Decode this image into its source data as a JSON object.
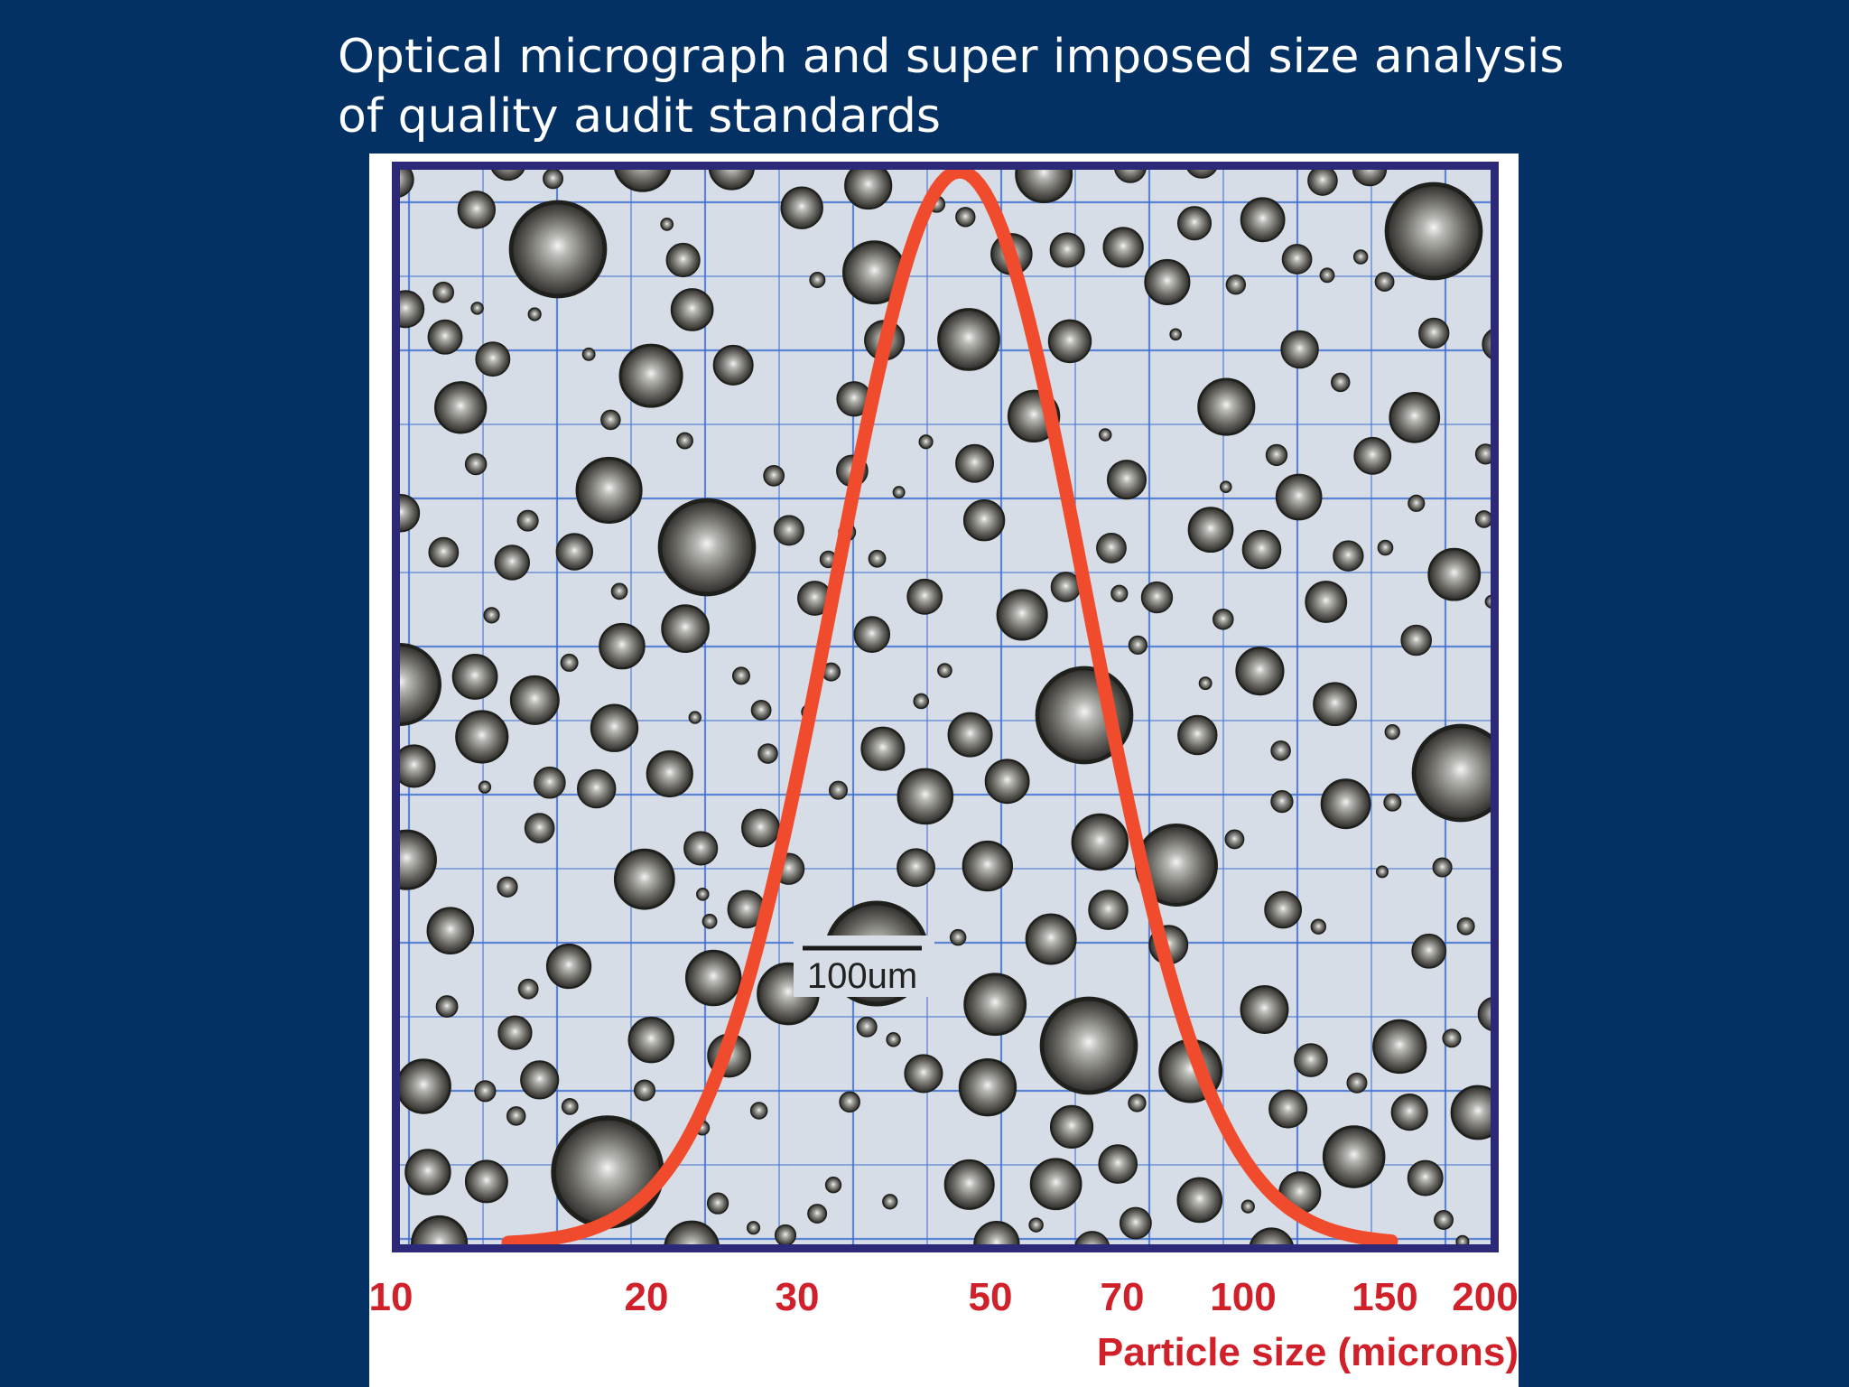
{
  "title": {
    "line1": "Optical micrograph and super imposed size analysis",
    "line2": "of quality audit standards"
  },
  "micrograph": {
    "scale_bar_label": "100um"
  },
  "axis": {
    "label": "Particle size (microns)",
    "ticks": [
      "10",
      "20",
      "30",
      "50",
      "70",
      "100",
      "150",
      "200"
    ]
  },
  "colors": {
    "background": "#033164",
    "frame": "#2c2a78",
    "grid": "#3d6fd1",
    "curve": "#ef4b2c",
    "axis_text": "#d0202a"
  }
}
